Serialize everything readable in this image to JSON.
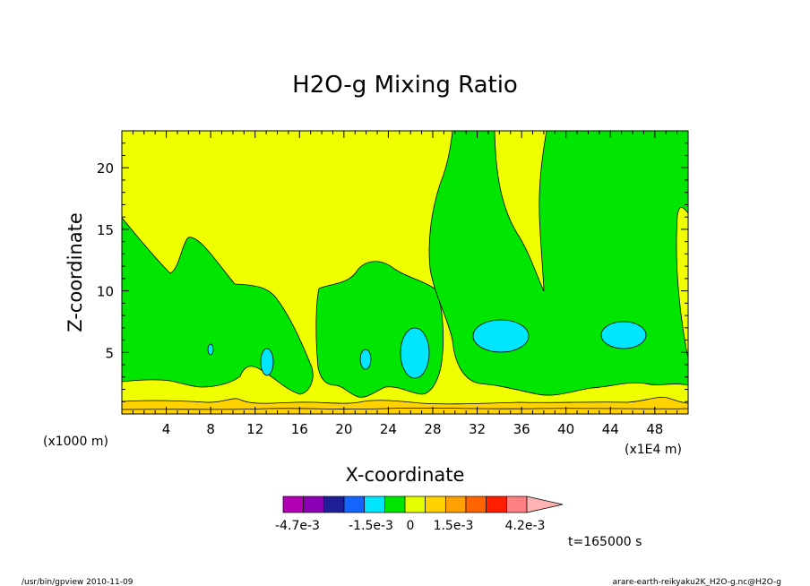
{
  "chart_data": {
    "type": "heatmap",
    "title": "H2O-g Mixing Ratio",
    "xlabel": "X-coordinate",
    "ylabel": "Z-coordinate",
    "x_unit_left": "(x1000 m)",
    "x_unit_right": "(x1E4 m)",
    "xlim": [
      0,
      51
    ],
    "ylim": [
      0,
      23
    ],
    "xticks": [
      4,
      8,
      12,
      16,
      20,
      24,
      28,
      32,
      36,
      40,
      44,
      48
    ],
    "yticks": [
      5,
      10,
      15,
      20
    ],
    "time_label": "t=165000 s",
    "colorbar": {
      "colors": [
        "#b400b4",
        "#8c00b4",
        "#1e1e96",
        "#1464ff",
        "#00e6ff",
        "#00e600",
        "#e6ff00",
        "#ffd200",
        "#ffa000",
        "#ff6400",
        "#ff1e00",
        "#ff8080",
        "#ffb4b4"
      ],
      "labels": [
        "-4.7e-3",
        "-1.5e-3",
        "0",
        "1.5e-3",
        "4.2e-3"
      ]
    },
    "regions": {
      "background": "#f0ff00",
      "band_bottom": "#ffd200",
      "band_mid": "#f0ff00",
      "moist": "#00e600",
      "very_moist": "#00e6ff"
    }
  },
  "footer": {
    "left": "/usr/bin/gpview  2010-11-09",
    "right": "arare-earth-reikyaku2K_H2O-g.nc@H2O-g"
  }
}
